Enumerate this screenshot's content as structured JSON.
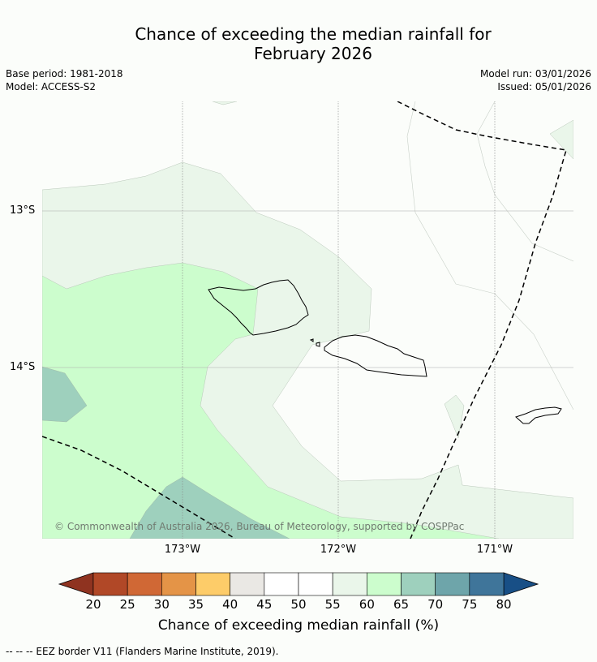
{
  "title": {
    "line1": "Chance of exceeding the median rainfall for",
    "line2": "February 2026"
  },
  "meta": {
    "base_period": "Base period: 1981-2018",
    "model": "Model: ACCESS-S2",
    "model_run": "Model run: 03/01/2026",
    "issued": "Issued: 05/01/2026"
  },
  "map": {
    "lat_labels": [
      "13°S",
      "14°S"
    ],
    "lon_labels": [
      "173°W",
      "172°W",
      "171°W"
    ],
    "copyright": "© Commonwealth of Australia 2026, Bureau of Meteorology, supported by COSPPac",
    "colors": {
      "c55_60": "#eaf6ea",
      "c60_65": "#ccfdcd",
      "c65_70": "#9ed0bd"
    }
  },
  "colorbar": {
    "ticks": [
      "20",
      "25",
      "30",
      "35",
      "40",
      "45",
      "50",
      "55",
      "60",
      "65",
      "70",
      "75",
      "80"
    ],
    "colors": [
      "#b14827",
      "#d06835",
      "#e49447",
      "#fdcc69",
      "#eae8e4",
      "#ffffff",
      "#ffffff",
      "#eaf6ea",
      "#ccfdcd",
      "#9ed0bd",
      "#6ea5aa",
      "#3f759a"
    ],
    "under_color": "#8f3320",
    "over_color": "#184f86",
    "label": "Chance of exceeding median rainfall (%)"
  },
  "footnote": "--  --  -- EEZ border V11 (Flanders Marine Institute, 2019)."
}
